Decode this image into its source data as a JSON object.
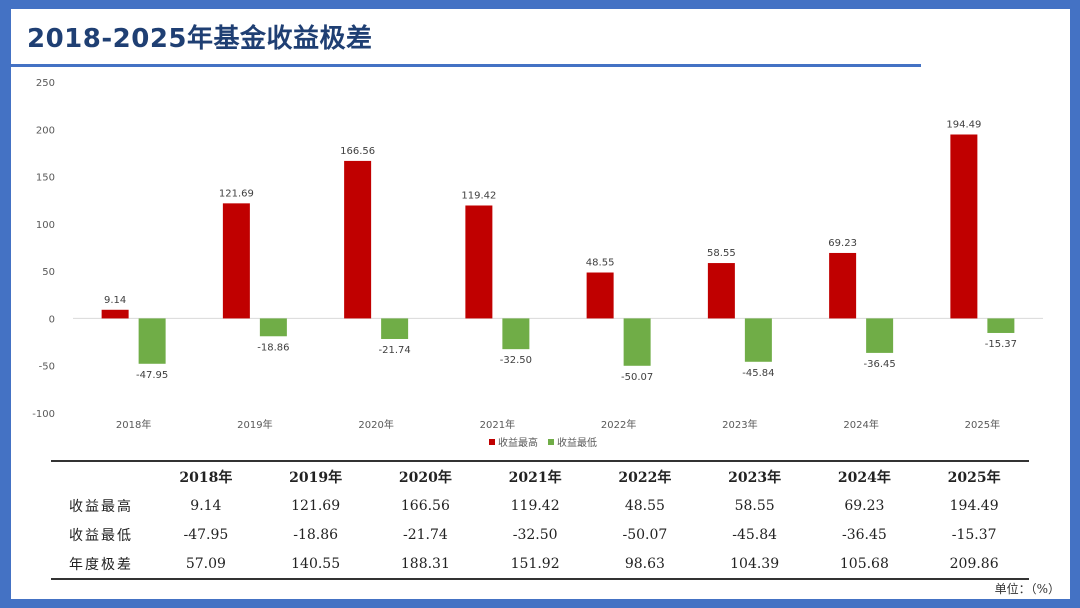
{
  "title": "2018-2025年基金收益极差",
  "colors": {
    "max": "#c00000",
    "min": "#70ad47",
    "accent": "#4472c4"
  },
  "legend": {
    "max_label": "收益最高",
    "min_label": "收益最低"
  },
  "chart_data": {
    "type": "bar",
    "title": "",
    "xlabel": "",
    "ylabel": "",
    "categories": [
      "2018年",
      "2019年",
      "2020年",
      "2021年",
      "2022年",
      "2023年",
      "2024年",
      "2025年"
    ],
    "series": [
      {
        "name": "收益最高",
        "values": [
          9.14,
          121.69,
          166.56,
          119.42,
          48.55,
          58.55,
          69.23,
          194.49
        ]
      },
      {
        "name": "收益最低",
        "values": [
          -47.95,
          -18.86,
          -21.74,
          -32.5,
          -50.07,
          -45.84,
          -36.45,
          -15.37
        ]
      }
    ],
    "ylim": [
      -100,
      250
    ],
    "yticks": [
      250,
      200,
      150,
      100,
      50,
      0,
      -50,
      -100
    ],
    "grid": false,
    "legend_position": "bottom"
  },
  "table": {
    "headers": [
      "",
      "2018年",
      "2019年",
      "2020年",
      "2021年",
      "2022年",
      "2023年",
      "2024年",
      "2025年"
    ],
    "rows": [
      [
        "收益最高",
        "9.14",
        "121.69",
        "166.56",
        "119.42",
        "48.55",
        "58.55",
        "69.23",
        "194.49"
      ],
      [
        "收益最低",
        "-47.95",
        "-18.86",
        "-21.74",
        "-32.50",
        "-50.07",
        "-45.84",
        "-36.45",
        "-15.37"
      ],
      [
        "年度极差",
        "57.09",
        "140.55",
        "188.31",
        "151.92",
        "98.63",
        "104.39",
        "105.68",
        "209.86"
      ]
    ]
  },
  "unit": "单位：（%）"
}
